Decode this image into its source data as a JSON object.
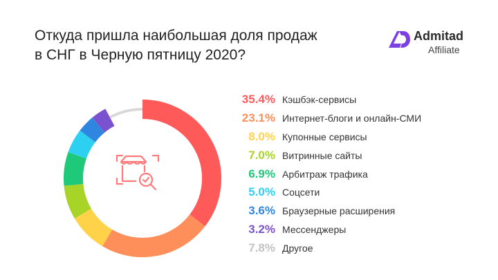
{
  "title": {
    "line1": "Откуда пришла наибольшая доля продаж",
    "line2": "в СНГ в Черную пятницу 2020?"
  },
  "logo": {
    "name": "Admitad",
    "sub": "Affiliate",
    "color": "#7b3fe4"
  },
  "center_icon": "shop-search-icon",
  "chart_data": {
    "type": "pie",
    "categories": [
      "Кэшбэк-сервисы",
      "Интернет-блоги и онлайн-СМИ",
      "Купонные сервисы",
      "Витринные сайты",
      "Арбитраж трафика",
      "Соцсети",
      "Браузерные расширения",
      "Мессенджеры",
      "Другое"
    ],
    "values": [
      35.4,
      23.1,
      8.0,
      7.0,
      6.9,
      5.0,
      3.6,
      3.2,
      7.8
    ],
    "value_labels": [
      "35.4%",
      "23.1%",
      "8.0%",
      "7.0%",
      "6.9%",
      "5.0%",
      "3.6%",
      "3.2%",
      "7.8%"
    ],
    "colors": [
      "#ff5a5a",
      "#ff8f5a",
      "#ffd24a",
      "#a8d428",
      "#1ec97a",
      "#2dd0f0",
      "#2f86e0",
      "#7a52d0",
      "#d8d8d8"
    ],
    "donut": true
  }
}
